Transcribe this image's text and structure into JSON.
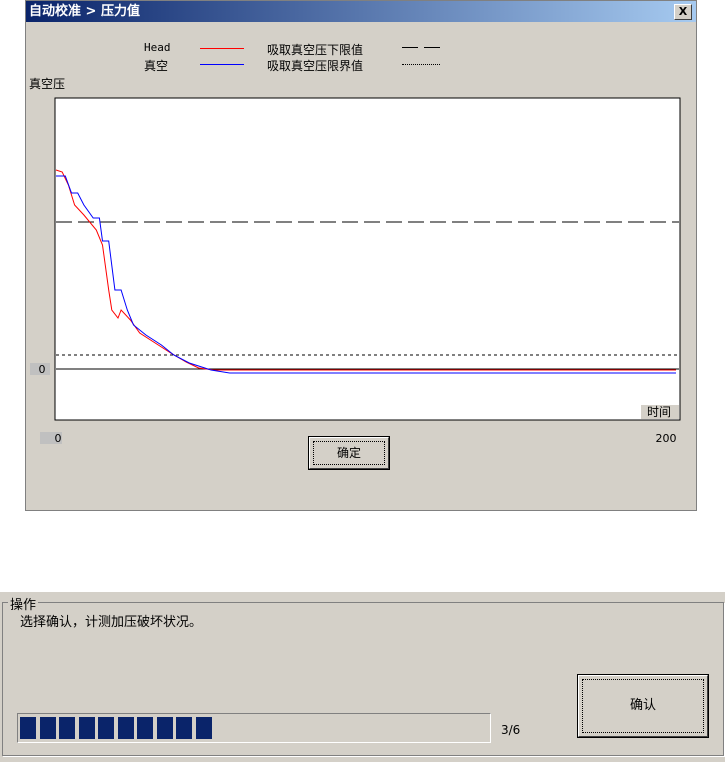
{
  "dialog": {
    "title": "自动校准 > 压力值",
    "close": "X",
    "ok_label": "确定"
  },
  "chart_data": {
    "type": "line",
    "ylabel": "真空压",
    "xlabel": "时间",
    "xlim": [
      0,
      200
    ],
    "ylim": [
      -51,
      271
    ],
    "x_ticks": [
      "0",
      "200"
    ],
    "y_ticks": [
      "0"
    ],
    "grid": false,
    "legend": [
      {
        "name": "Head",
        "color": "#ff0000",
        "style": "solid"
      },
      {
        "name": "真空",
        "color": "#0000ff",
        "style": "solid"
      },
      {
        "name": "吸取真空压下限值",
        "color": "#000000",
        "style": "dashed"
      },
      {
        "name": "吸取真空压限界值",
        "color": "#000000",
        "style": "dotted"
      }
    ],
    "series": [
      {
        "name": "Head",
        "color": "#ff0000",
        "points": [
          [
            0,
            199
          ],
          [
            2,
            197
          ],
          [
            4,
            184
          ],
          [
            6,
            164
          ],
          [
            9,
            154
          ],
          [
            13,
            139
          ],
          [
            15,
            124
          ],
          [
            17,
            79
          ],
          [
            18,
            59
          ],
          [
            20,
            51
          ],
          [
            21,
            59
          ],
          [
            24,
            49
          ],
          [
            27,
            36
          ],
          [
            32,
            26
          ],
          [
            37,
            16
          ],
          [
            42,
            7
          ],
          [
            46,
            1
          ],
          [
            51,
            -1
          ],
          [
            200,
            -1
          ]
        ]
      },
      {
        "name": "真空",
        "color": "#0000ff",
        "points": [
          [
            0,
            193
          ],
          [
            3,
            193
          ],
          [
            5,
            176
          ],
          [
            7,
            176
          ],
          [
            9,
            164
          ],
          [
            12,
            151
          ],
          [
            14,
            151
          ],
          [
            15,
            128
          ],
          [
            17,
            128
          ],
          [
            19,
            79
          ],
          [
            21,
            79
          ],
          [
            23,
            59
          ],
          [
            25,
            44
          ],
          [
            29,
            34
          ],
          [
            34,
            24
          ],
          [
            38,
            14
          ],
          [
            43,
            6
          ],
          [
            50,
            -1
          ],
          [
            56,
            -4
          ],
          [
            200,
            -4
          ]
        ]
      }
    ],
    "reference_lines": [
      {
        "name": "吸取真空压下限值",
        "y": 147,
        "style": "dashed"
      },
      {
        "name": "吸取真空压限界值",
        "y": 14,
        "style": "dotted"
      },
      {
        "name": "zero",
        "y": 0,
        "style": "solid"
      }
    ]
  },
  "panel": {
    "group_label": "操作",
    "message": "选择确认，计测加压破坏状况。",
    "confirm_label": "确认",
    "progress_text": "3/6",
    "progress_percent": 40
  }
}
